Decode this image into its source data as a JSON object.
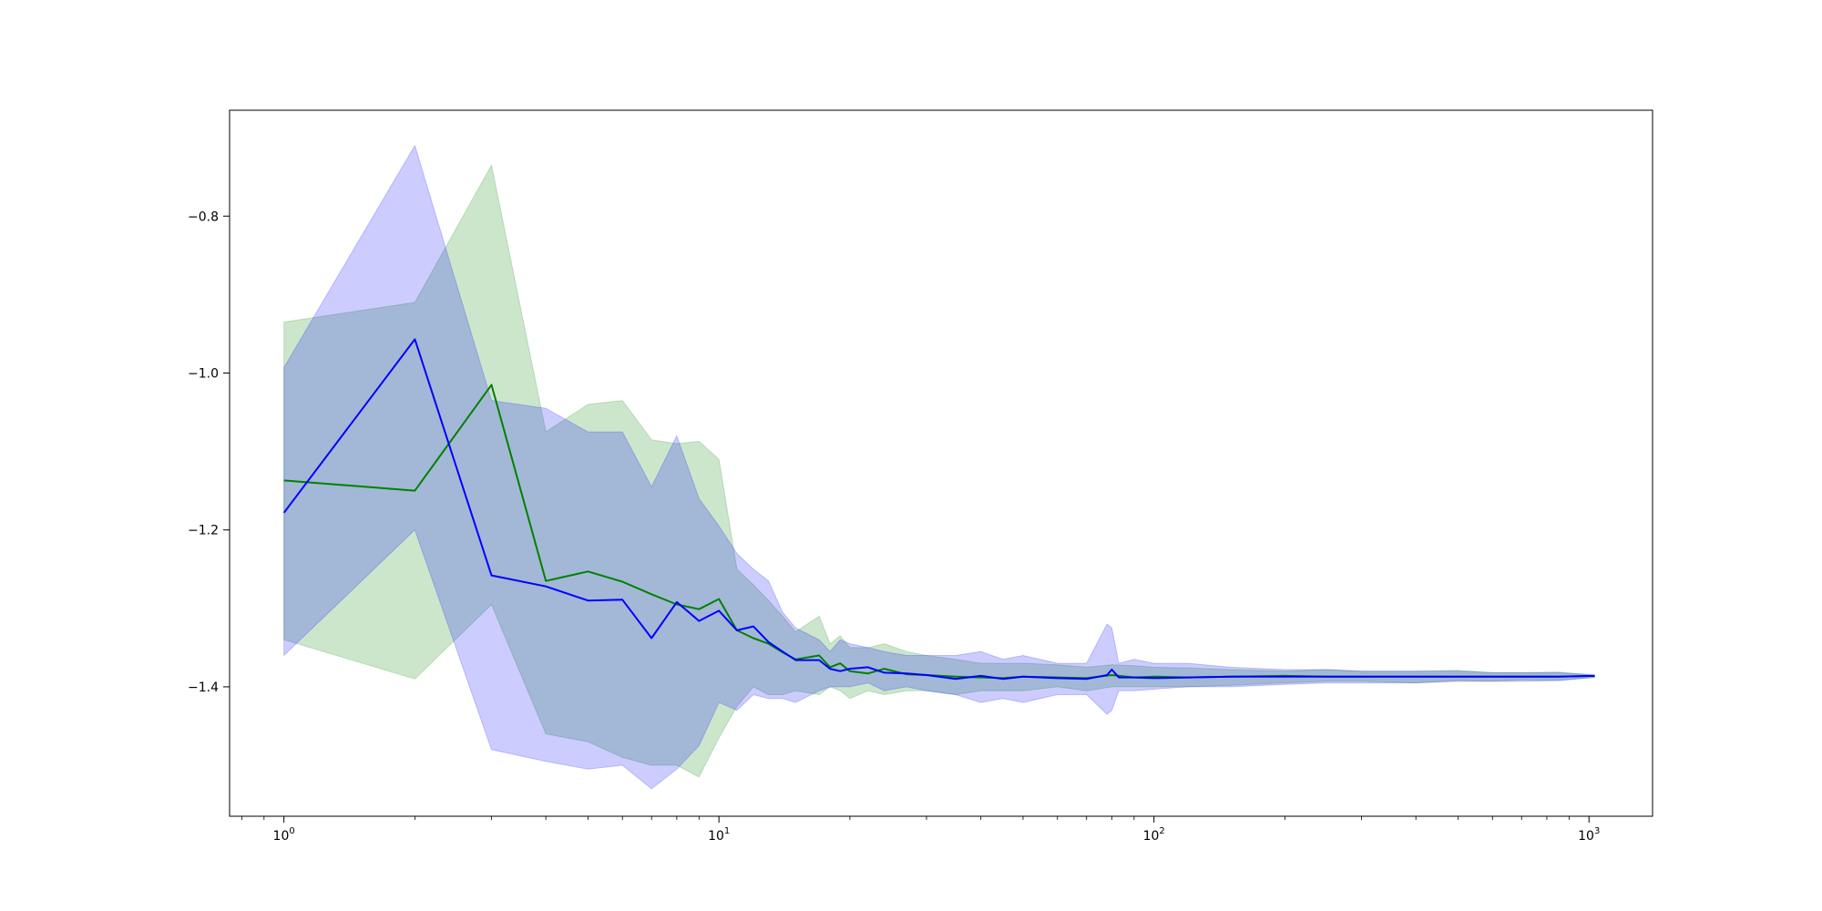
{
  "chart_data": {
    "type": "line",
    "title": "",
    "xlabel": "",
    "ylabel": "",
    "x_scale": "log",
    "xlim": [
      0.75,
      1400
    ],
    "ylim": [
      -1.565,
      -0.665
    ],
    "grid": false,
    "legend": "none",
    "x_ticks": [
      {
        "value": 1,
        "base": "10",
        "exp": "0"
      },
      {
        "value": 10,
        "base": "10",
        "exp": "1"
      },
      {
        "value": 100,
        "base": "10",
        "exp": "2"
      },
      {
        "value": 1000,
        "base": "10",
        "exp": "3"
      }
    ],
    "y_ticks": [
      {
        "value": -0.8,
        "label": "−0.8"
      },
      {
        "value": -1.0,
        "label": "−1.0"
      },
      {
        "value": -1.2,
        "label": "−1.2"
      },
      {
        "value": -1.4,
        "label": "−1.4"
      }
    ],
    "series": [
      {
        "color": "#008000",
        "band_color": "#008000",
        "band_opacity": 0.2,
        "x": [
          1,
          2,
          3,
          4,
          5,
          6,
          7,
          8,
          9,
          10,
          11,
          12,
          13,
          14,
          15,
          17,
          18,
          19,
          20,
          22,
          24,
          27,
          30,
          35,
          40,
          45,
          50,
          60,
          70,
          80,
          90,
          100,
          120,
          150,
          200,
          250,
          300,
          400,
          500,
          600,
          700,
          850,
          1030
        ],
        "y": [
          -1.137,
          -1.15,
          -1.015,
          -1.265,
          -1.253,
          -1.266,
          -1.282,
          -1.295,
          -1.301,
          -1.288,
          -1.328,
          -1.338,
          -1.345,
          -1.356,
          -1.365,
          -1.36,
          -1.375,
          -1.37,
          -1.38,
          -1.383,
          -1.377,
          -1.384,
          -1.385,
          -1.387,
          -1.388,
          -1.389,
          -1.387,
          -1.388,
          -1.389,
          -1.385,
          -1.388,
          -1.387,
          -1.388,
          -1.387,
          -1.386,
          -1.387,
          -1.387,
          -1.387,
          -1.387,
          -1.387,
          -1.387,
          -1.387,
          -1.386
        ],
        "upper": [
          -0.935,
          -0.91,
          -0.735,
          -1.075,
          -1.04,
          -1.035,
          -1.085,
          -1.09,
          -1.087,
          -1.11,
          -1.25,
          -1.27,
          -1.29,
          -1.31,
          -1.33,
          -1.31,
          -1.345,
          -1.335,
          -1.35,
          -1.35,
          -1.345,
          -1.355,
          -1.36,
          -1.365,
          -1.37,
          -1.37,
          -1.37,
          -1.372,
          -1.375,
          -1.372,
          -1.373,
          -1.375,
          -1.376,
          -1.378,
          -1.38,
          -1.378,
          -1.38,
          -1.38,
          -1.379,
          -1.382,
          -1.382,
          -1.381,
          -1.385
        ],
        "lower": [
          -1.34,
          -1.39,
          -1.295,
          -1.46,
          -1.47,
          -1.49,
          -1.5,
          -1.5,
          -1.515,
          -1.465,
          -1.425,
          -1.4,
          -1.41,
          -1.41,
          -1.405,
          -1.41,
          -1.4,
          -1.405,
          -1.415,
          -1.405,
          -1.41,
          -1.405,
          -1.405,
          -1.41,
          -1.405,
          -1.405,
          -1.405,
          -1.4,
          -1.405,
          -1.4,
          -1.4,
          -1.4,
          -1.4,
          -1.398,
          -1.395,
          -1.393,
          -1.393,
          -1.395,
          -1.392,
          -1.393,
          -1.391,
          -1.392,
          -1.388
        ]
      },
      {
        "color": "#0000ff",
        "band_color": "#0000ff",
        "band_opacity": 0.2,
        "x": [
          1,
          2,
          3,
          4,
          5,
          6,
          7,
          8,
          9,
          10,
          11,
          12,
          13,
          14,
          15,
          17,
          18,
          19,
          20,
          22,
          24,
          27,
          30,
          35,
          40,
          45,
          50,
          60,
          70,
          78,
          80,
          83,
          90,
          100,
          120,
          150,
          200,
          250,
          300,
          400,
          500,
          600,
          700,
          850,
          1030
        ],
        "y": [
          -1.178,
          -0.957,
          -1.258,
          -1.272,
          -1.29,
          -1.289,
          -1.338,
          -1.292,
          -1.316,
          -1.303,
          -1.328,
          -1.323,
          -1.343,
          -1.355,
          -1.366,
          -1.366,
          -1.377,
          -1.38,
          -1.377,
          -1.375,
          -1.382,
          -1.383,
          -1.385,
          -1.39,
          -1.386,
          -1.39,
          -1.387,
          -1.389,
          -1.39,
          -1.385,
          -1.378,
          -1.388,
          -1.388,
          -1.389,
          -1.388,
          -1.387,
          -1.387,
          -1.387,
          -1.387,
          -1.387,
          -1.387,
          -1.387,
          -1.387,
          -1.387,
          -1.386
        ],
        "upper": [
          -0.993,
          -0.71,
          -1.035,
          -1.045,
          -1.075,
          -1.075,
          -1.145,
          -1.08,
          -1.16,
          -1.195,
          -1.23,
          -1.25,
          -1.265,
          -1.305,
          -1.325,
          -1.34,
          -1.355,
          -1.34,
          -1.345,
          -1.35,
          -1.355,
          -1.36,
          -1.36,
          -1.36,
          -1.355,
          -1.365,
          -1.36,
          -1.37,
          -1.37,
          -1.32,
          -1.325,
          -1.37,
          -1.365,
          -1.37,
          -1.37,
          -1.375,
          -1.378,
          -1.378,
          -1.38,
          -1.38,
          -1.38,
          -1.382,
          -1.382,
          -1.382,
          -1.385
        ],
        "lower": [
          -1.36,
          -1.2,
          -1.48,
          -1.495,
          -1.505,
          -1.5,
          -1.53,
          -1.505,
          -1.475,
          -1.42,
          -1.43,
          -1.41,
          -1.415,
          -1.415,
          -1.42,
          -1.405,
          -1.4,
          -1.4,
          -1.4,
          -1.395,
          -1.405,
          -1.4,
          -1.405,
          -1.41,
          -1.42,
          -1.415,
          -1.42,
          -1.41,
          -1.41,
          -1.435,
          -1.43,
          -1.405,
          -1.405,
          -1.403,
          -1.4,
          -1.4,
          -1.397,
          -1.395,
          -1.395,
          -1.395,
          -1.393,
          -1.393,
          -1.393,
          -1.392,
          -1.388
        ]
      }
    ]
  }
}
